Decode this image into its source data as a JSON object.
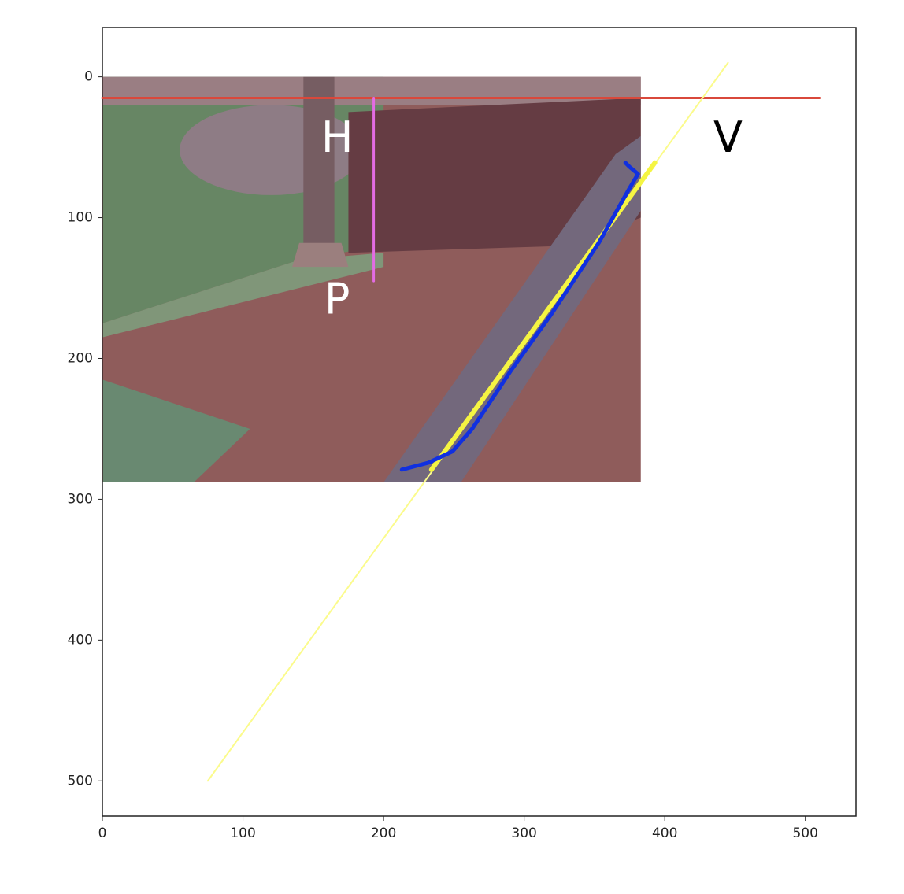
{
  "chart_data": {
    "type": "line",
    "xlim": [
      0,
      536
    ],
    "ylim": [
      525,
      -35
    ],
    "xticks": [
      0,
      100,
      200,
      300,
      400,
      500
    ],
    "yticks": [
      0,
      100,
      200,
      300,
      400,
      500
    ],
    "image_xlim": [
      0,
      383
    ],
    "image_ylim": [
      288,
      0
    ],
    "series": [
      {
        "color": "#d9483b",
        "width": 3,
        "x": [
          0,
          510
        ],
        "values": [
          15,
          15
        ]
      },
      {
        "color": "#e36ce3",
        "width": 3,
        "x": [
          193,
          193
        ],
        "values": [
          15,
          145
        ]
      },
      {
        "color": "#fbfb8c",
        "width": 2,
        "x": [
          75,
          445
        ],
        "values": [
          500,
          -10
        ]
      },
      {
        "color": "#f5f542",
        "width": 6,
        "x": [
          234,
          393
        ],
        "values": [
          279,
          61
        ]
      },
      {
        "color": "#1030e0",
        "width": 5,
        "x": [
          213,
          232,
          249,
          263,
          291,
          319,
          353,
          375,
          381,
          375,
          372
        ],
        "values": [
          279,
          274,
          266,
          250,
          208,
          169,
          118,
          79,
          69,
          64,
          61
        ]
      }
    ],
    "annotations": [
      {
        "text": "H",
        "x": 167,
        "y": 45,
        "color": "#ffffff"
      },
      {
        "text": "P",
        "x": 167,
        "y": 160,
        "color": "#ffffff"
      },
      {
        "text": "V",
        "x": 445,
        "y": 45,
        "color": "#000000"
      }
    ]
  }
}
